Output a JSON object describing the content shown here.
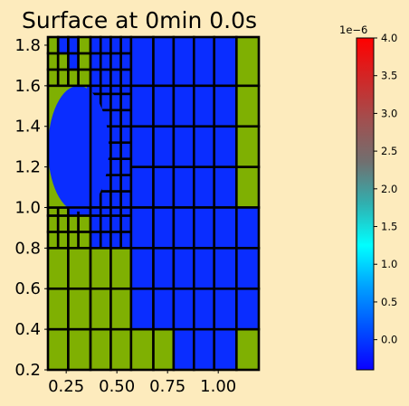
{
  "chart_data": {
    "type": "heatmap",
    "title": "Surface at 0min 0.0s",
    "xlabel": "",
    "ylabel": "",
    "xlim": [
      0.16,
      1.2
    ],
    "ylim": [
      0.2,
      1.84
    ],
    "x_ticks": [
      0.25,
      0.5,
      0.75,
      1.0
    ],
    "x_tick_labels": [
      "0.25",
      "0.50",
      "0.75",
      "1.00"
    ],
    "y_ticks": [
      0.2,
      0.4,
      0.6,
      0.8,
      1.0,
      1.2,
      1.4,
      1.6,
      1.8
    ],
    "y_tick_labels": [
      "0.2",
      "0.4",
      "0.6",
      "0.8",
      "1.0",
      "1.2",
      "1.4",
      "1.6",
      "1.8"
    ],
    "grid": false,
    "colors": {
      "wet": "#0a2dff",
      "dry": "#7fb002",
      "cell_edge": "#000000",
      "background": "#fdebbd"
    },
    "cell_value_note_wet": 0.0,
    "colorbar": {
      "multiplier_label": "1e−6",
      "range": [
        -4e-07,
        4e-06
      ],
      "tick_values": [
        0.0,
        0.5,
        1.0,
        1.5,
        2.0,
        2.5,
        3.0,
        3.5,
        4.0
      ],
      "tick_labels": [
        "0.0",
        "0.5",
        "1.0",
        "1.5",
        "2.0",
        "2.5",
        "3.0",
        "3.5",
        "4.0"
      ],
      "stops": [
        "#0a00ff",
        "#0050ff",
        "#00a0ff",
        "#00ffff",
        "#30b0b0",
        "#707070",
        "#a05050",
        "#d02828",
        "#ff0000"
      ]
    },
    "regions": {
      "top_band_y": [
        1.6,
        1.84
      ],
      "middle_band_y": [
        1.0,
        1.6
      ],
      "lower_band_y": [
        0.8,
        1.0
      ],
      "wet_ellipse": {
        "center": [
          0.31,
          1.29
        ],
        "semi_axes": [
          0.15,
          0.31
        ]
      }
    },
    "cells": {
      "top_band": {
        "dry_coarse_columns_x": [
          [
            0.16,
            0.37
          ]
        ],
        "fine_columns_x": [
          [
            0.37,
            0.57
          ]
        ],
        "coarse_columns_x": [
          [
            0.57,
            0.68
          ],
          [
            0.68,
            0.78
          ],
          [
            0.78,
            0.88
          ],
          [
            0.88,
            0.98
          ],
          [
            0.98,
            1.09
          ],
          [
            1.09,
            1.2
          ]
        ],
        "dry_columns_x": [
          [
            1.09,
            1.2
          ]
        ]
      }
    }
  }
}
